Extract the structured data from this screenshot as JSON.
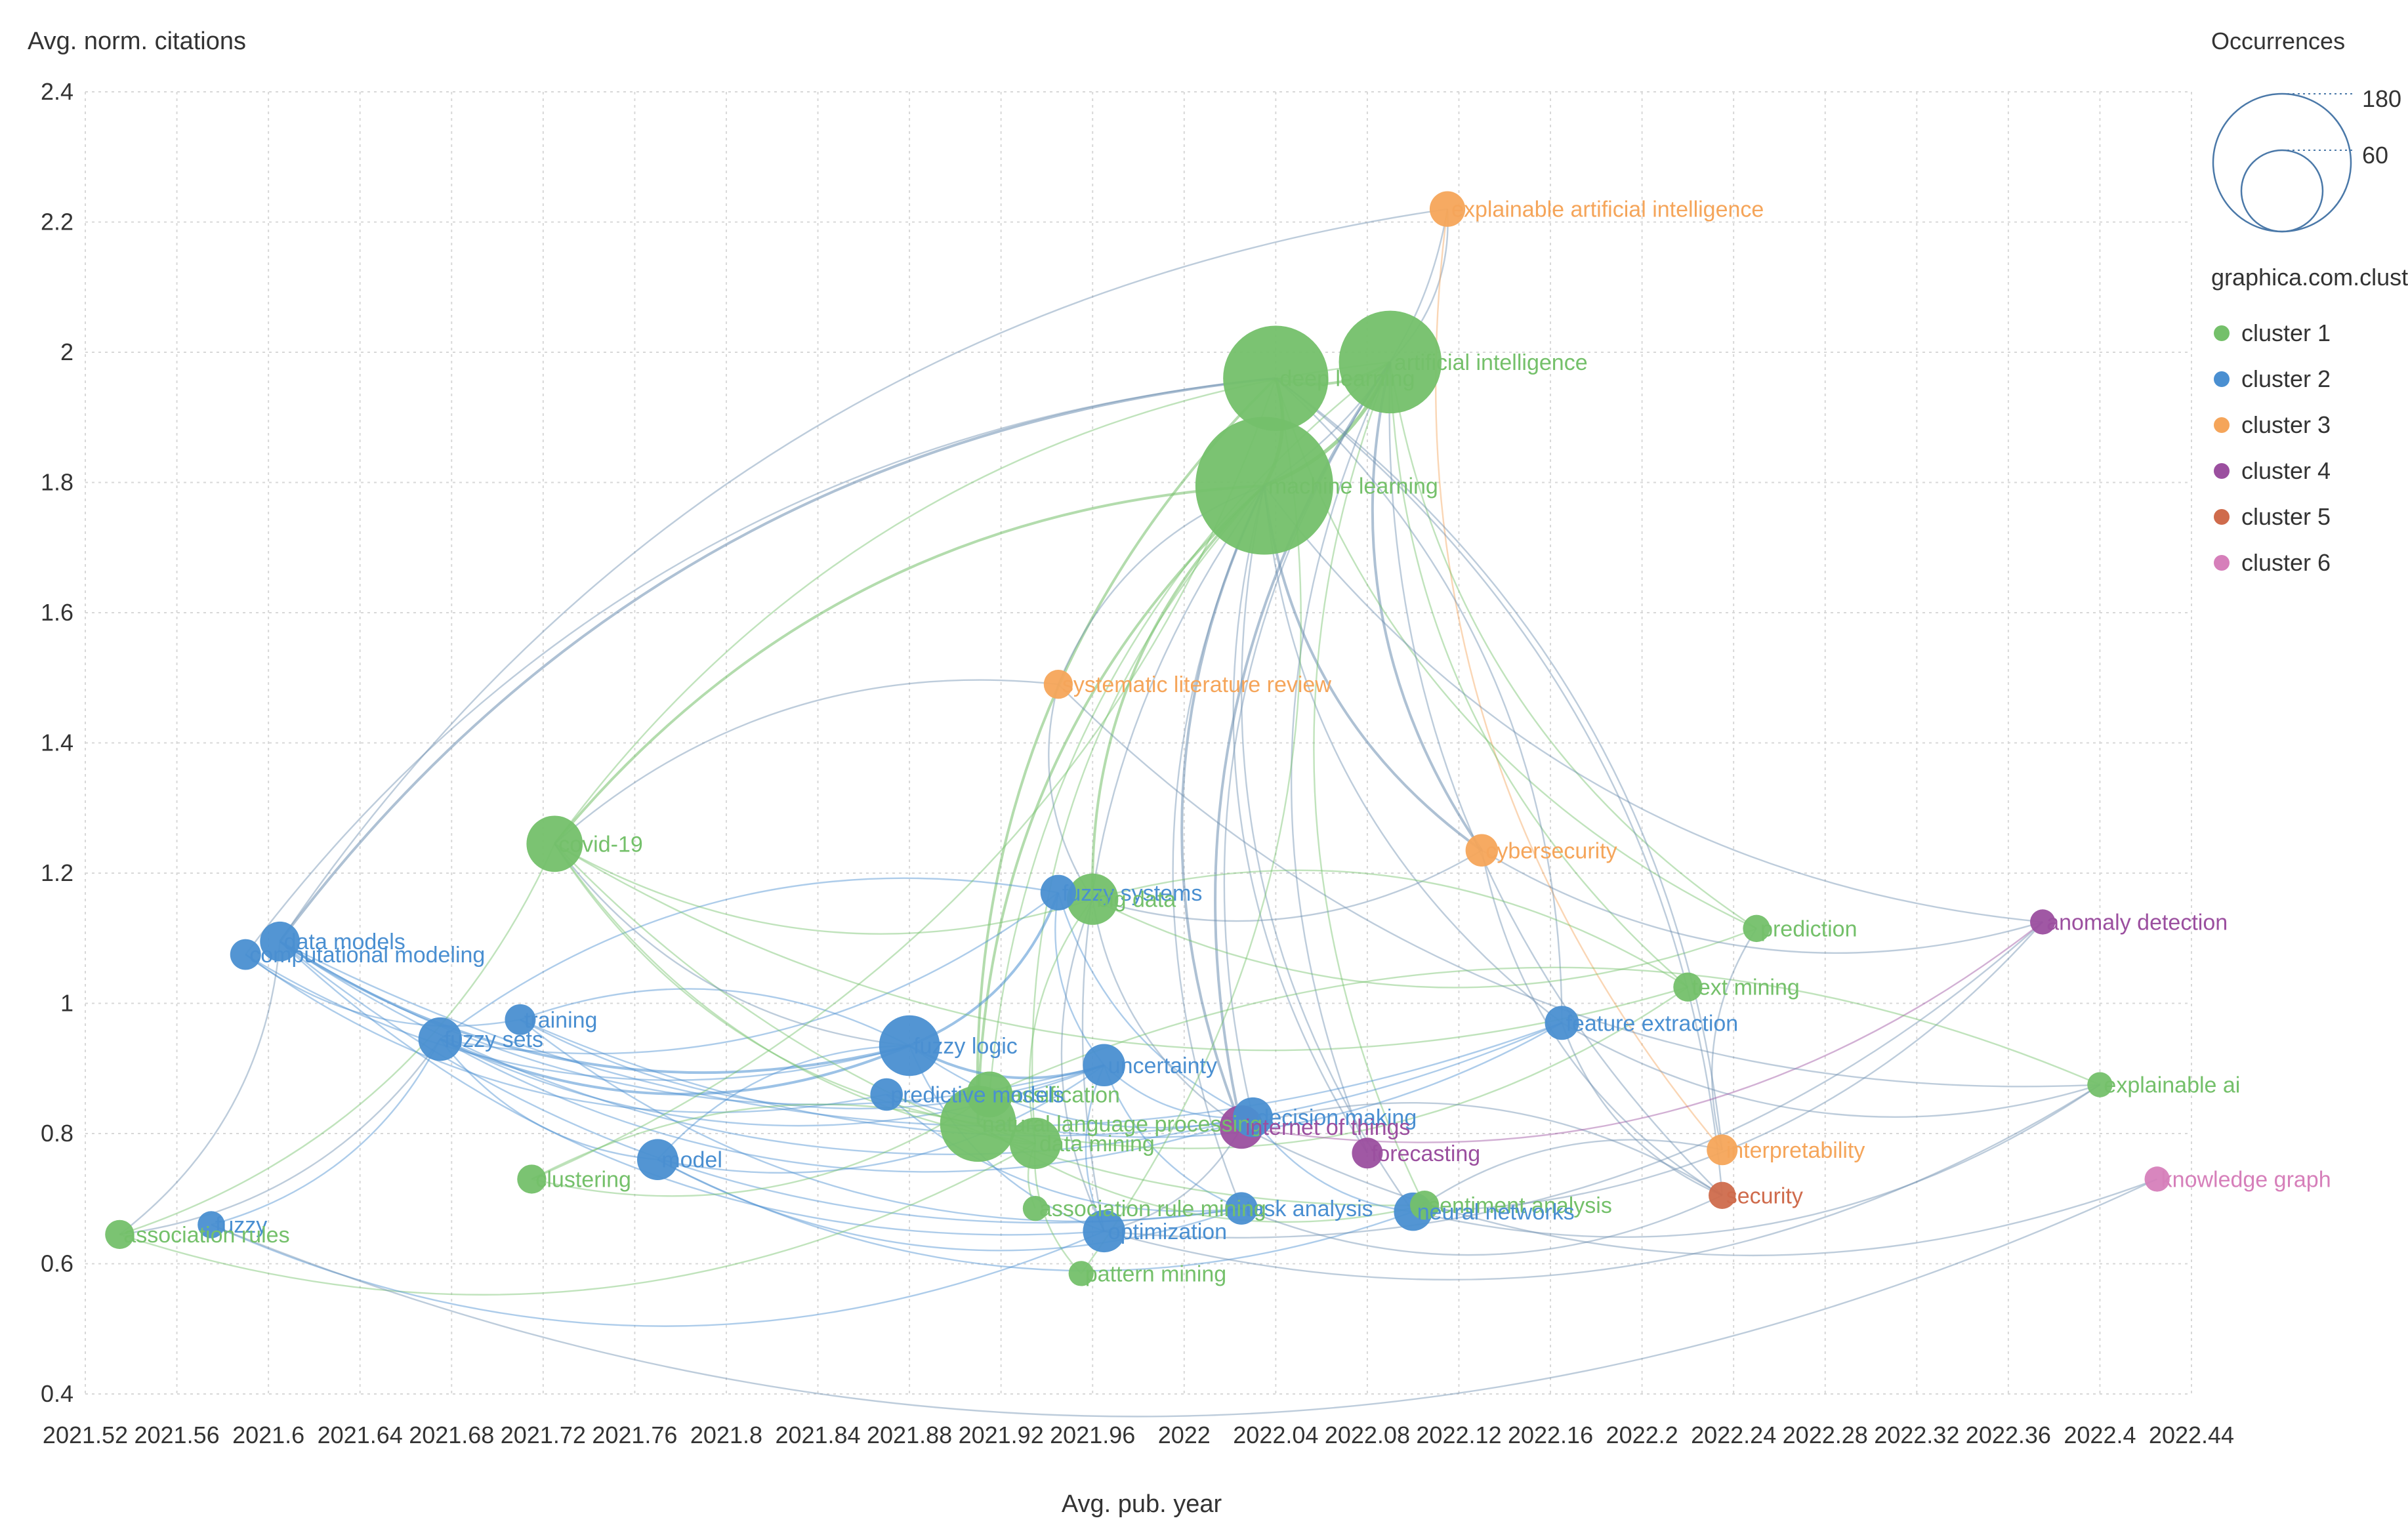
{
  "chart_data": {
    "type": "scatter",
    "subtype": "bubble-network",
    "xlabel": "Avg. pub. year",
    "ylabel": "Avg. norm. citations",
    "xlim": [
      2021.52,
      2022.44
    ],
    "ylim": [
      0.4,
      2.4
    ],
    "x_ticks": [
      "2021.52",
      "2021.56",
      "2021.6",
      "2021.64",
      "2021.68",
      "2021.72",
      "2021.76",
      "2021.8",
      "2021.84",
      "2021.88",
      "2021.92",
      "2021.96",
      "2022",
      "2022.04",
      "2022.08",
      "2022.12",
      "2022.16",
      "2022.2",
      "2022.24",
      "2022.28",
      "2022.32",
      "2022.36",
      "2022.4",
      "2022.44"
    ],
    "y_ticks": [
      "0.4",
      "0.6",
      "0.8",
      "1",
      "1.2",
      "1.4",
      "1.6",
      "1.8",
      "2",
      "2.2",
      "2.4"
    ],
    "grid": true,
    "size_legend": {
      "title": "Occurrences",
      "values": [
        180,
        60
      ]
    },
    "color_legend": {
      "title": "graphica.com.clusters",
      "items": [
        {
          "name": "cluster 1",
          "color": "#74c06a"
        },
        {
          "name": "cluster 2",
          "color": "#4a8fd1"
        },
        {
          "name": "cluster 3",
          "color": "#f5a55a"
        },
        {
          "name": "cluster 4",
          "color": "#9b4f9f"
        },
        {
          "name": "cluster 5",
          "color": "#cf6b4c"
        },
        {
          "name": "cluster 6",
          "color": "#d67fba"
        }
      ]
    },
    "nodes": [
      {
        "label": "explainable artificial intelligence",
        "x": 2022.115,
        "y": 2.22,
        "occ": 12,
        "cluster": 3
      },
      {
        "label": "artificial intelligence",
        "x": 2022.09,
        "y": 1.985,
        "occ": 100,
        "cluster": 1
      },
      {
        "label": "deep learning",
        "x": 2022.04,
        "y": 1.96,
        "occ": 105,
        "cluster": 1
      },
      {
        "label": "machine learning",
        "x": 2022.035,
        "y": 1.795,
        "occ": 180,
        "cluster": 1
      },
      {
        "label": "systematic literature review",
        "x": 2021.945,
        "y": 1.49,
        "occ": 8,
        "cluster": 3
      },
      {
        "label": "covid-19",
        "x": 2021.725,
        "y": 1.245,
        "occ": 30,
        "cluster": 1
      },
      {
        "label": "cybersecurity",
        "x": 2022.13,
        "y": 1.235,
        "occ": 10,
        "cluster": 3
      },
      {
        "label": "fuzzy systems",
        "x": 2021.945,
        "y": 1.17,
        "occ": 12,
        "cluster": 2
      },
      {
        "label": "big data",
        "x": 2021.96,
        "y": 1.16,
        "occ": 25,
        "cluster": 1
      },
      {
        "label": "anomaly detection",
        "x": 2022.375,
        "y": 1.125,
        "occ": 6,
        "cluster": 4
      },
      {
        "label": "prediction",
        "x": 2022.25,
        "y": 1.115,
        "occ": 7,
        "cluster": 1
      },
      {
        "label": "data models",
        "x": 2021.605,
        "y": 1.095,
        "occ": 15,
        "cluster": 2
      },
      {
        "label": "computational modeling",
        "x": 2021.59,
        "y": 1.075,
        "occ": 9,
        "cluster": 2
      },
      {
        "label": "text mining",
        "x": 2022.22,
        "y": 1.025,
        "occ": 8,
        "cluster": 1
      },
      {
        "label": "training",
        "x": 2021.71,
        "y": 0.975,
        "occ": 9,
        "cluster": 2
      },
      {
        "label": "feature extraction",
        "x": 2022.165,
        "y": 0.97,
        "occ": 11,
        "cluster": 2
      },
      {
        "label": "fuzzy sets",
        "x": 2021.675,
        "y": 0.945,
        "occ": 18,
        "cluster": 2
      },
      {
        "label": "fuzzy logic",
        "x": 2021.88,
        "y": 0.935,
        "occ": 35,
        "cluster": 2
      },
      {
        "label": "uncertainty",
        "x": 2021.965,
        "y": 0.905,
        "occ": 17,
        "cluster": 2
      },
      {
        "label": "explainable ai",
        "x": 2022.4,
        "y": 0.875,
        "occ": 6,
        "cluster": 1
      },
      {
        "label": "classification",
        "x": 2021.915,
        "y": 0.86,
        "occ": 20,
        "cluster": 1
      },
      {
        "label": "predictive models",
        "x": 2021.87,
        "y": 0.86,
        "occ": 10,
        "cluster": 2
      },
      {
        "label": "decision making",
        "x": 2022.03,
        "y": 0.825,
        "occ": 15,
        "cluster": 2
      },
      {
        "label": "natural language processing",
        "x": 2021.91,
        "y": 0.815,
        "occ": 55,
        "cluster": 1
      },
      {
        "label": "internet of things",
        "x": 2022.025,
        "y": 0.81,
        "occ": 18,
        "cluster": 4
      },
      {
        "label": "data mining",
        "x": 2021.935,
        "y": 0.785,
        "occ": 25,
        "cluster": 1
      },
      {
        "label": "interpretability",
        "x": 2022.235,
        "y": 0.775,
        "occ": 9,
        "cluster": 3
      },
      {
        "label": "forecasting",
        "x": 2022.08,
        "y": 0.77,
        "occ": 9,
        "cluster": 4
      },
      {
        "label": "model",
        "x": 2021.77,
        "y": 0.76,
        "occ": 16,
        "cluster": 2
      },
      {
        "label": "clustering",
        "x": 2021.715,
        "y": 0.73,
        "occ": 8,
        "cluster": 1
      },
      {
        "label": "knowledge graph",
        "x": 2022.425,
        "y": 0.73,
        "occ": 6,
        "cluster": 6
      },
      {
        "label": "security",
        "x": 2022.235,
        "y": 0.705,
        "occ": 7,
        "cluster": 5
      },
      {
        "label": "sentiment analysis",
        "x": 2022.105,
        "y": 0.69,
        "occ": 8,
        "cluster": 1
      },
      {
        "label": "task analysis",
        "x": 2022.025,
        "y": 0.685,
        "occ": 10,
        "cluster": 2
      },
      {
        "label": "neural networks",
        "x": 2022.1,
        "y": 0.68,
        "occ": 14,
        "cluster": 2
      },
      {
        "label": "association rule mining",
        "x": 2021.935,
        "y": 0.685,
        "occ": 6,
        "cluster": 1
      },
      {
        "label": "fuzzy",
        "x": 2021.575,
        "y": 0.66,
        "occ": 7,
        "cluster": 2
      },
      {
        "label": "association rules",
        "x": 2021.535,
        "y": 0.645,
        "occ": 8,
        "cluster": 1
      },
      {
        "label": "optimization",
        "x": 2021.965,
        "y": 0.65,
        "occ": 17,
        "cluster": 2
      },
      {
        "label": "pattern mining",
        "x": 2021.955,
        "y": 0.585,
        "occ": 6,
        "cluster": 1
      }
    ],
    "edges": [
      [
        "machine learning",
        "deep learning",
        3
      ],
      [
        "machine learning",
        "artificial intelligence",
        3
      ],
      [
        "deep learning",
        "artificial intelligence",
        2
      ],
      [
        "machine learning",
        "big data",
        2
      ],
      [
        "machine learning",
        "natural language processing",
        2
      ],
      [
        "machine learning",
        "covid-19",
        2
      ],
      [
        "deep learning",
        "natural language processing",
        2
      ],
      [
        "artificial intelligence",
        "covid-19",
        1
      ],
      [
        "artificial intelligence",
        "cybersecurity",
        2
      ],
      [
        "machine learning",
        "cybersecurity",
        2
      ],
      [
        "machine learning",
        "explainable artificial intelligence",
        1
      ],
      [
        "artificial intelligence",
        "explainable artificial intelligence",
        1
      ],
      [
        "explainable artificial intelligence",
        "interpretability",
        1
      ],
      [
        "explainable artificial intelligence",
        "data models",
        1
      ],
      [
        "deep learning",
        "data models",
        2
      ],
      [
        "deep learning",
        "computational modeling",
        1
      ],
      [
        "artificial intelligence",
        "text mining",
        1
      ],
      [
        "artificial intelligence",
        "prediction",
        1
      ],
      [
        "deep learning",
        "prediction",
        1
      ],
      [
        "machine learning",
        "anomaly detection",
        1
      ],
      [
        "machine learning",
        "internet of things",
        2
      ],
      [
        "artificial intelligence",
        "internet of things",
        2
      ],
      [
        "machine learning",
        "forecasting",
        1
      ],
      [
        "artificial intelligence",
        "forecasting",
        1
      ],
      [
        "machine learning",
        "feature extraction",
        1
      ],
      [
        "machine learning",
        "task analysis",
        1
      ],
      [
        "machine learning",
        "optimization",
        1
      ],
      [
        "artificial intelligence",
        "sentiment analysis",
        1
      ],
      [
        "artificial intelligence",
        "decision making",
        1
      ],
      [
        "machine learning",
        "systematic literature review",
        1
      ],
      [
        "machine learning",
        "data mining",
        1
      ],
      [
        "artificial intelligence",
        "classification",
        1
      ],
      [
        "machine learning",
        "neural networks",
        1
      ],
      [
        "artificial intelligence",
        "security",
        1
      ],
      [
        "data models",
        "fuzzy logic",
        2
      ],
      [
        "data models",
        "uncertainty",
        1
      ],
      [
        "data models",
        "decision making",
        1
      ],
      [
        "data models",
        "feature extraction",
        1
      ],
      [
        "data models",
        "task analysis",
        1
      ],
      [
        "data models",
        "optimization",
        1
      ],
      [
        "computational modeling",
        "fuzzy logic",
        1
      ],
      [
        "computational modeling",
        "predictive models",
        1
      ],
      [
        "computational modeling",
        "training",
        1
      ],
      [
        "fuzzy sets",
        "fuzzy logic",
        2
      ],
      [
        "fuzzy sets",
        "uncertainty",
        1
      ],
      [
        "fuzzy sets",
        "decision making",
        1
      ],
      [
        "fuzzy sets",
        "model",
        1
      ],
      [
        "fuzzy sets",
        "fuzzy systems",
        1
      ],
      [
        "fuzzy logic",
        "uncertainty",
        2
      ],
      [
        "fuzzy logic",
        "fuzzy systems",
        2
      ],
      [
        "fuzzy logic",
        "decision making",
        1
      ],
      [
        "fuzzy logic",
        "optimization",
        1
      ],
      [
        "fuzzy logic",
        "model",
        1
      ],
      [
        "fuzzy logic",
        "training",
        1
      ],
      [
        "model",
        "uncertainty",
        1
      ],
      [
        "model",
        "task analysis",
        1
      ],
      [
        "model",
        "neural networks",
        1
      ],
      [
        "training",
        "feature extraction",
        1
      ],
      [
        "training",
        "task analysis",
        1
      ],
      [
        "training",
        "uncertainty",
        1
      ],
      [
        "fuzzy systems",
        "decision making",
        1
      ],
      [
        "fuzzy systems",
        "uncertainty",
        1
      ],
      [
        "fuzzy systems",
        "fuzzy sets",
        1
      ],
      [
        "uncertainty",
        "decision making",
        1
      ],
      [
        "uncertainty",
        "optimization",
        1
      ],
      [
        "uncertainty",
        "task analysis",
        1
      ],
      [
        "predictive models",
        "feature extraction",
        1
      ],
      [
        "predictive models",
        "task analysis",
        1
      ],
      [
        "covid-19",
        "natural language processing",
        1
      ],
      [
        "covid-19",
        "data mining",
        1
      ],
      [
        "covid-19",
        "big data",
        1
      ],
      [
        "covid-19",
        "sentiment analysis",
        1
      ],
      [
        "covid-19",
        "text mining",
        1
      ],
      [
        "covid-19",
        "fuzzy logic",
        1
      ],
      [
        "big data",
        "data mining",
        1
      ],
      [
        "big data",
        "internet of things",
        1
      ],
      [
        "big data",
        "prediction",
        1
      ],
      [
        "big data",
        "optimization",
        1
      ],
      [
        "big data",
        "cybersecurity",
        1
      ],
      [
        "natural language processing",
        "text mining",
        1
      ],
      [
        "natural language processing",
        "sentiment analysis",
        1
      ],
      [
        "natural language processing",
        "classification",
        1
      ],
      [
        "natural language processing",
        "data mining",
        1
      ],
      [
        "data mining",
        "association rule mining",
        1
      ],
      [
        "data mining",
        "pattern mining",
        1
      ],
      [
        "data mining",
        "clustering",
        1
      ],
      [
        "association rules",
        "data models",
        1
      ],
      [
        "association rules",
        "fuzzy sets",
        1
      ],
      [
        "association rules",
        "covid-19",
        1
      ],
      [
        "association rules",
        "data mining",
        1
      ],
      [
        "fuzzy",
        "fuzzy sets",
        1
      ],
      [
        "fuzzy",
        "optimization",
        1
      ],
      [
        "fuzzy",
        "knowledge graph",
        1
      ],
      [
        "clustering",
        "deep learning",
        1
      ],
      [
        "clustering",
        "classification",
        1
      ],
      [
        "optimization",
        "anomaly detection",
        1
      ],
      [
        "optimization",
        "explainable ai",
        1
      ],
      [
        "optimization",
        "internet of things",
        1
      ],
      [
        "feature extraction",
        "security",
        1
      ],
      [
        "feature extraction",
        "deep learning",
        1
      ],
      [
        "feature extraction",
        "explainable ai",
        1
      ],
      [
        "interpretability",
        "neural networks",
        1
      ],
      [
        "interpretability",
        "deep learning",
        1
      ],
      [
        "security",
        "internet of things",
        1
      ],
      [
        "security",
        "deep learning",
        1
      ],
      [
        "neural networks",
        "explainable ai",
        1
      ],
      [
        "neural networks",
        "anomaly detection",
        1
      ],
      [
        "internet of things",
        "anomaly detection",
        1
      ],
      [
        "internet of things",
        "knowledge graph",
        1
      ],
      [
        "systematic literature review",
        "covid-19",
        1
      ],
      [
        "systematic literature review",
        "big data",
        1
      ],
      [
        "systematic literature review",
        "explainable ai",
        1
      ],
      [
        "cybersecurity",
        "security",
        1
      ],
      [
        "cybersecurity",
        "anomaly detection",
        1
      ],
      [
        "pattern mining",
        "deep learning",
        1
      ],
      [
        "task analysis",
        "security",
        1
      ],
      [
        "decision making",
        "neural networks",
        1
      ],
      [
        "explainable ai",
        "classification",
        1
      ],
      [
        "prediction",
        "interpretability",
        1
      ],
      [
        "text mining",
        "big data",
        1
      ]
    ]
  }
}
